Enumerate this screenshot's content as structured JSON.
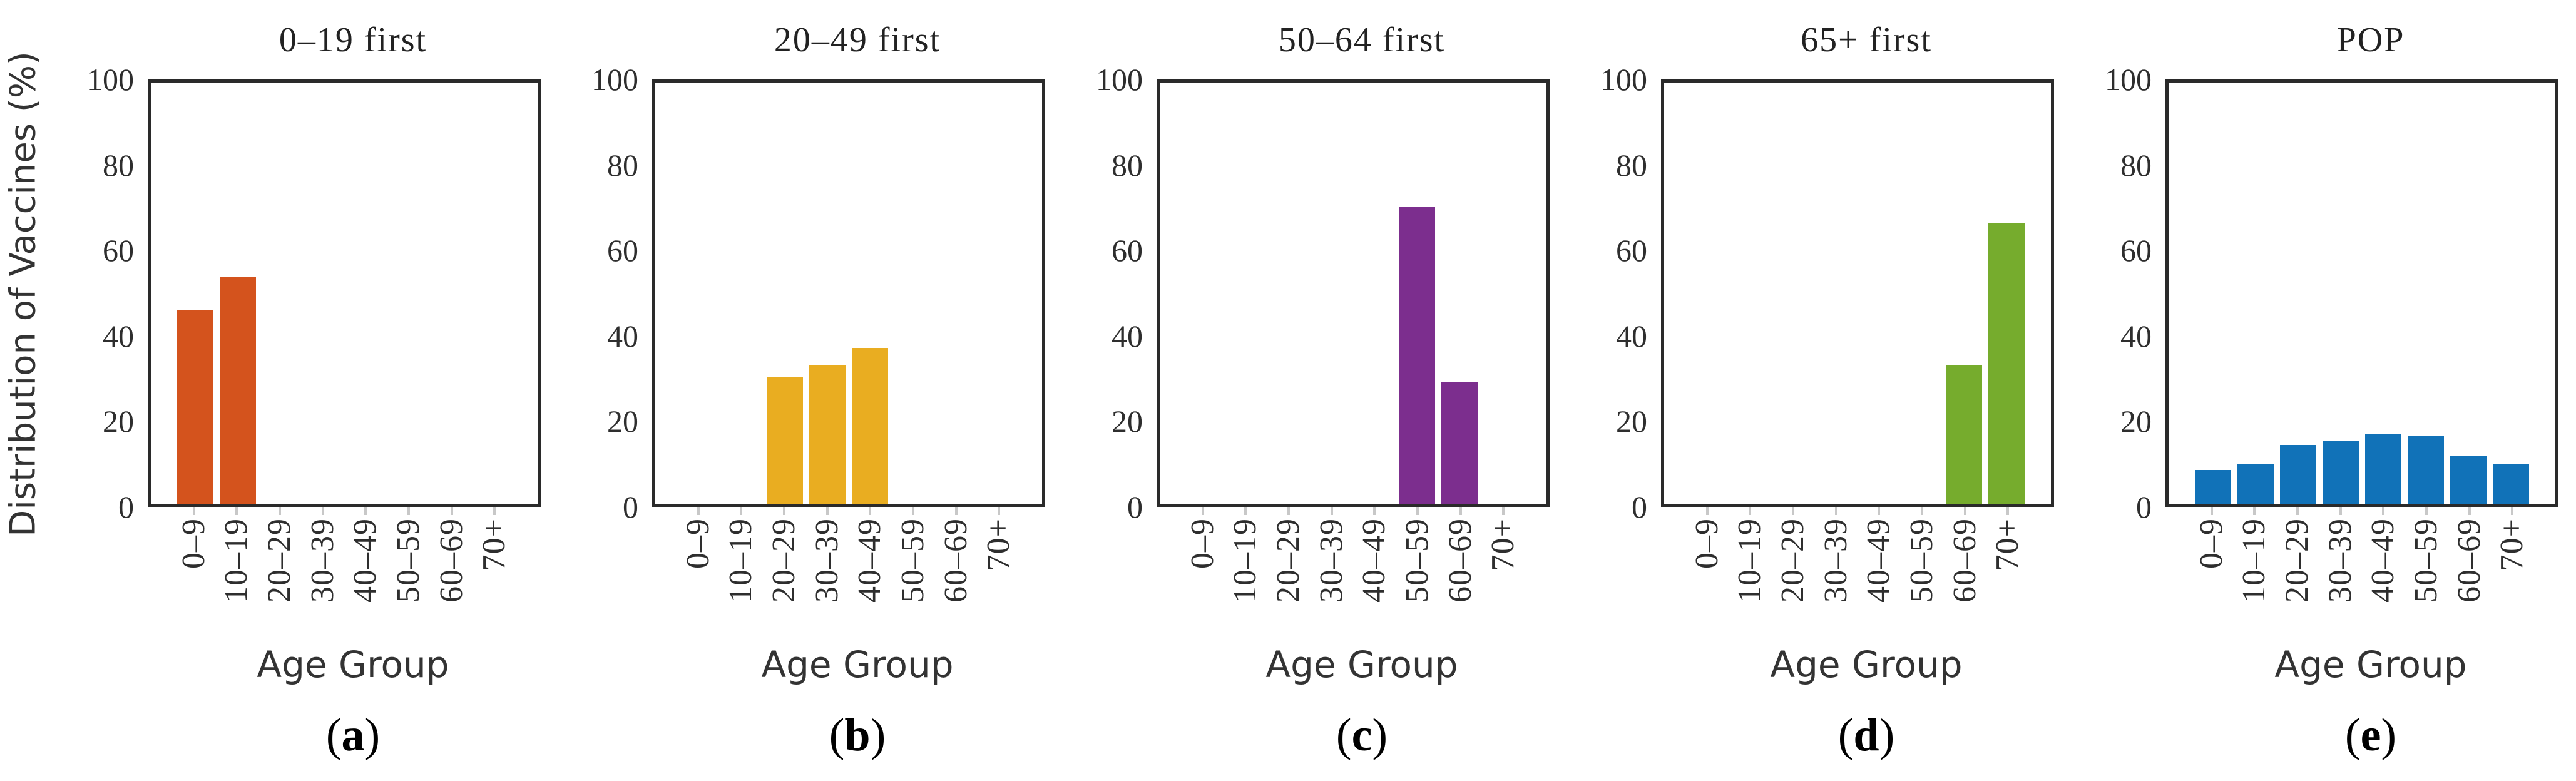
{
  "figure": {
    "ylabel": "Distribution of Vaccines (%)",
    "xlabel": "Age Group",
    "y_ticks": [
      100,
      80,
      60,
      40,
      20,
      0
    ],
    "y_range": [
      0,
      100
    ],
    "categories": [
      "0–9",
      "10–19",
      "20–29",
      "30–39",
      "40–49",
      "50–59",
      "60–69",
      "70+"
    ],
    "caption_open": "(",
    "caption_close": ")",
    "axis_color": "#2a2a2a"
  },
  "chart_data": [
    {
      "type": "bar",
      "panel_letter": "a",
      "title": "0–19 first",
      "color": "#d4531d",
      "categories": [
        "0–9",
        "10–19",
        "20–29",
        "30–39",
        "40–49",
        "50–59",
        "60–69",
        "70+"
      ],
      "values": [
        46,
        54,
        0,
        0,
        0,
        0,
        0,
        0
      ],
      "xlabel": "Age Group",
      "ylabel": "Distribution of Vaccines (%)",
      "ylim": [
        0,
        100
      ],
      "grid": false,
      "caption": "(a)"
    },
    {
      "type": "bar",
      "panel_letter": "b",
      "title": "20–49 first",
      "color": "#e9ad21",
      "categories": [
        "0–9",
        "10–19",
        "20–29",
        "30–39",
        "40–49",
        "50–59",
        "60–69",
        "70+"
      ],
      "values": [
        0,
        0,
        30,
        33,
        37,
        0,
        0,
        0
      ],
      "xlabel": "Age Group",
      "ylabel": "Distribution of Vaccines (%)",
      "ylim": [
        0,
        100
      ],
      "grid": false,
      "caption": "(b)"
    },
    {
      "type": "bar",
      "panel_letter": "c",
      "title": "50–64 first",
      "color": "#7c2e8e",
      "categories": [
        "0–9",
        "10–19",
        "20–29",
        "30–39",
        "40–49",
        "50–59",
        "60–69",
        "70+"
      ],
      "values": [
        0,
        0,
        0,
        0,
        0,
        70.5,
        29,
        0
      ],
      "xlabel": "Age Group",
      "ylabel": "Distribution of Vaccines (%)",
      "ylim": [
        0,
        100
      ],
      "grid": false,
      "caption": "(c)"
    },
    {
      "type": "bar",
      "panel_letter": "d",
      "title": "65+ first",
      "color": "#76ac2d",
      "categories": [
        "0–9",
        "10–19",
        "20–29",
        "30–39",
        "40–49",
        "50–59",
        "60–69",
        "70+"
      ],
      "values": [
        0,
        0,
        0,
        0,
        0,
        0,
        33,
        66.5
      ],
      "xlabel": "Age Group",
      "ylabel": "Distribution of Vaccines (%)",
      "ylim": [
        0,
        100
      ],
      "grid": false,
      "caption": "(d)"
    },
    {
      "type": "bar",
      "panel_letter": "e",
      "title": "POP",
      "color": "#1172b8",
      "categories": [
        "0–9",
        "10–19",
        "20–29",
        "30–39",
        "40–49",
        "50–59",
        "60–69",
        "70+"
      ],
      "values": [
        8,
        9.5,
        14,
        15,
        16.5,
        16,
        11.5,
        9.5
      ],
      "xlabel": "Age Group",
      "ylabel": "Distribution of Vaccines (%)",
      "ylim": [
        0,
        100
      ],
      "grid": false,
      "caption": "(e)"
    }
  ]
}
